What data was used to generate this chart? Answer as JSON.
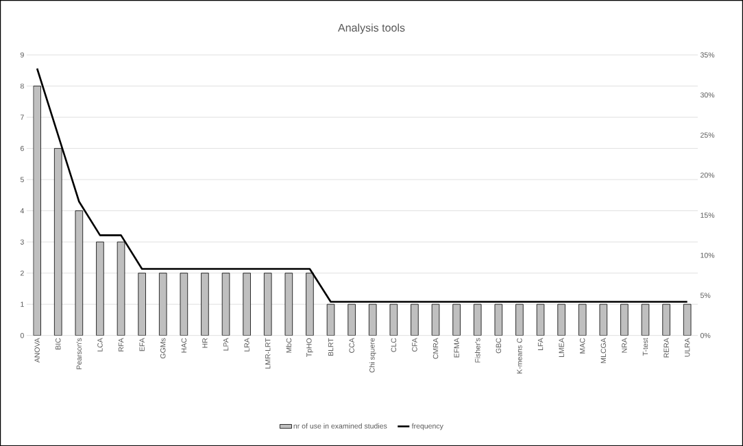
{
  "chart_data": {
    "type": "bar",
    "title": "Analysis tools",
    "categories": [
      "ANOVA",
      "BIC",
      "Pearson's",
      "LCA",
      "RFA",
      "EFA",
      "GGMs",
      "HAC",
      "HR",
      "LPA",
      "LRA",
      "LMR-LRT",
      "MbC",
      "TpHO",
      "BLRT",
      "CCA",
      "Chi squere",
      "CLC",
      "CFA",
      "CMRA",
      "EFMA",
      "Fisher's",
      "GBC",
      "K-means C",
      "LFA",
      "LMEA",
      "MAC",
      "MLCGA",
      "NRA",
      "T-test",
      "RERA",
      "ULRA"
    ],
    "series": [
      {
        "name": "nr of use in examined studies",
        "color": "#bfbfbf",
        "values": [
          8,
          6,
          4,
          3,
          3,
          2,
          2,
          2,
          2,
          2,
          2,
          2,
          2,
          2,
          1,
          1,
          1,
          1,
          1,
          1,
          1,
          1,
          1,
          1,
          1,
          1,
          1,
          1,
          1,
          1,
          1,
          1
        ]
      },
      {
        "name": "frequency",
        "type": "line",
        "axis": "y2",
        "color": "#000000",
        "values": [
          33.3,
          25,
          16.7,
          12.5,
          12.5,
          8.3,
          8.3,
          8.3,
          8.3,
          8.3,
          8.3,
          8.3,
          8.3,
          8.3,
          4.2,
          4.2,
          4.2,
          4.2,
          4.2,
          4.2,
          4.2,
          4.2,
          4.2,
          4.2,
          4.2,
          4.2,
          4.2,
          4.2,
          4.2,
          4.2,
          4.2,
          4.2
        ]
      }
    ],
    "ylim": [
      0,
      9
    ],
    "yticks": [
      0,
      1,
      2,
      3,
      4,
      5,
      6,
      7,
      8,
      9
    ],
    "y2lim": [
      0,
      35
    ],
    "y2ticks": [
      {
        "value": 0,
        "label": "0%"
      },
      {
        "value": 5,
        "label": "5%"
      },
      {
        "value": 10,
        "label": "10%"
      },
      {
        "value": 15,
        "label": "15%"
      },
      {
        "value": 20,
        "label": "20%"
      },
      {
        "value": 25,
        "label": "25%"
      },
      {
        "value": 30,
        "label": "30%"
      },
      {
        "value": 35,
        "label": "35%"
      }
    ],
    "grid": "y",
    "legend": "bottom",
    "marker": "none",
    "line_style": "solid"
  }
}
